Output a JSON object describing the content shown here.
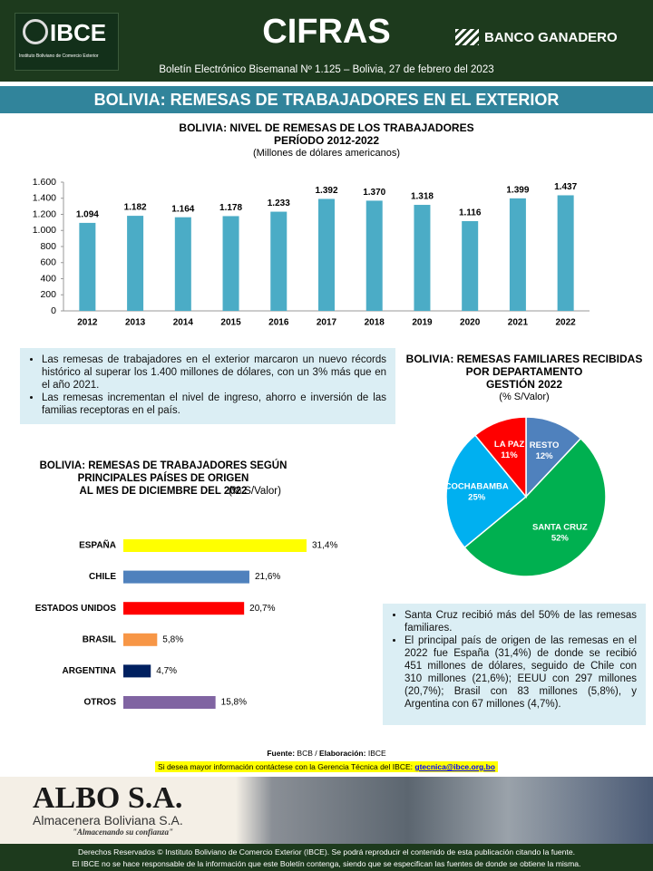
{
  "header": {
    "logo": "IBCE",
    "logo_sub": "Instituto Boliviano de Comercio Exterior",
    "title": "CIFRAS",
    "sponsor": "BANCO GANADERO",
    "subtitle": "Boletín Electrónico Bisemanal Nº 1.125 – Bolivia, 27 de febrero del 2023"
  },
  "banner": "BOLIVIA: REMESAS DE TRABAJADORES EN EL EXTERIOR",
  "chart_data": [
    {
      "type": "bar",
      "title": [
        "BOLIVIA: NIVEL DE REMESAS DE LOS TRABAJADORES",
        "PERÍODO 2012-2022"
      ],
      "subtitle": "(Millones de dólares americanos)",
      "categories": [
        "2012",
        "2013",
        "2014",
        "2015",
        "2016",
        "2017",
        "2018",
        "2019",
        "2020",
        "2021",
        "2022"
      ],
      "values": [
        1094,
        1182,
        1164,
        1178,
        1233,
        1392,
        1370,
        1318,
        1116,
        1399,
        1437
      ],
      "value_labels": [
        "1.094",
        "1.182",
        "1.164",
        "1.178",
        "1.233",
        "1.392",
        "1.370",
        "1.318",
        "1.116",
        "1.399",
        "1.437"
      ],
      "color": "#4bacc6",
      "ylim": [
        0,
        1600
      ],
      "yticks": [
        0,
        200,
        400,
        600,
        800,
        {
          "value": 1000,
          "label": "1.000"
        },
        {
          "value": 1200,
          "label": "1.200"
        },
        {
          "value": 1400,
          "label": "1.400"
        },
        {
          "value": 1600,
          "label": "1.600"
        }
      ]
    },
    {
      "type": "pie",
      "title": [
        "BOLIVIA: REMESAS FAMILIARES RECIBIDAS",
        "POR DEPARTAMENTO",
        "GESTIÓN 2022"
      ],
      "subtitle": "(% S/Valor)",
      "categories": [
        "RESTO",
        "SANTA CRUZ",
        "COCHABAMBA",
        "LA PAZ"
      ],
      "values": [
        12,
        52,
        25,
        11
      ],
      "value_labels": [
        "12%",
        "52%",
        "25%",
        "11%"
      ],
      "colors": [
        "#4f81bd",
        "#00b050",
        "#00b0f0",
        "#ff0000"
      ]
    },
    {
      "type": "hbar",
      "title": [
        "BOLIVIA: REMESAS DE TRABAJADORES SEGÚN",
        "PRINCIPALES PAÍSES DE ORIGEN",
        "AL MES DE DICIEMBRE DEL 2022"
      ],
      "subtitle": "(% S/Valor)",
      "categories": [
        "ESPAÑA",
        "CHILE",
        "ESTADOS UNIDOS",
        "BRASIL",
        "ARGENTINA",
        "OTROS"
      ],
      "values": [
        31.4,
        21.6,
        20.7,
        5.8,
        4.7,
        15.8
      ],
      "value_labels": [
        "31,4%",
        "21,6%",
        "20,7%",
        "5,8%",
        "4,7%",
        "15,8%"
      ],
      "colors": [
        "#ffff00",
        "#4f81bd",
        "#ff0000",
        "#f79646",
        "#002060",
        "#8064a2"
      ]
    }
  ],
  "notes_top": [
    "Las remesas de trabajadores en el exterior marcaron un nuevo récords histórico al superar los 1.400 millones de dólares, con un 3% más que en el año 2021.",
    "Las remesas incrementan el nivel de ingreso, ahorro e inversión de las familias receptoras en el país."
  ],
  "notes_bottom": [
    "Santa Cruz recibió más del 50% de las remesas familiares.",
    "El principal país de origen de las remesas en el 2022 fue España (31,4%) de donde se recibió 451 millones de dólares, seguido de Chile con 310 millones (21,6%); EEUU con 297 millones (20,7%); Brasil con 83 millones (5,8%), y Argentina con 67 millones (4,7%)."
  ],
  "source": {
    "label": "Fuente:",
    "text": "BCB / ",
    "label2": "Elaboración:",
    "text2": "IBCE"
  },
  "contact": {
    "text": "Si desea mayor información contáctese con la Gerencia Técnica del IBCE:",
    "email": "gtecnica@ibce.org.bo"
  },
  "ad": {
    "brand": "ALBO S.A.",
    "name": "Almacenera Boliviana S.A.",
    "slogan": "\"Almacenando su confianza\""
  },
  "footer": [
    "Derechos Reservados © Instituto Boliviano de Comercio Exterior (IBCE). Se podrá reproducir el contenido de esta publicación citando la fuente.",
    "El IBCE no se hace responsable de la información que este Boletín contenga, siendo que se especifican las fuentes de donde se obtiene la misma."
  ]
}
